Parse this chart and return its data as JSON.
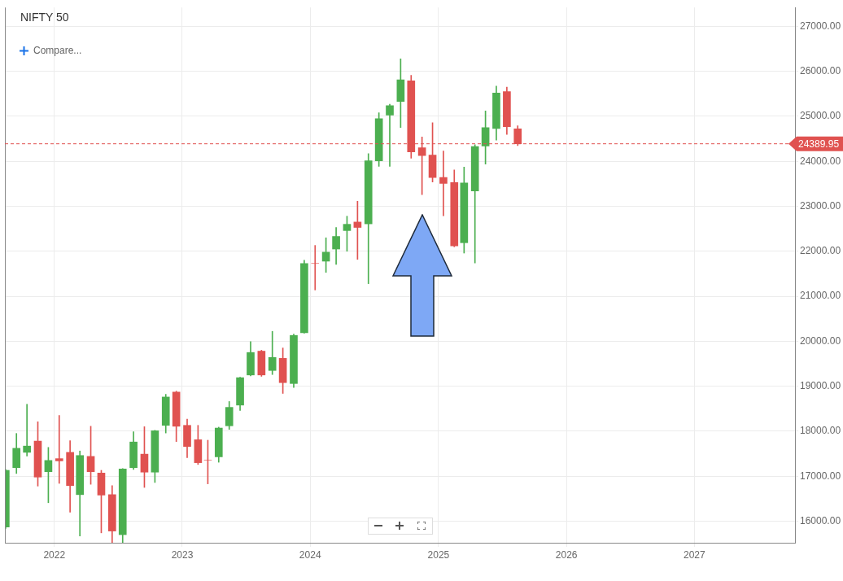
{
  "chart_data": {
    "type": "candlestick",
    "title": "NIFTY 50",
    "annotations": [
      "Compare..."
    ],
    "x": [
      "2021-08-15",
      "2021-09-15",
      "2021-10-15",
      "2021-11-15",
      "2021-12-15",
      "2022-01-15",
      "2022-02-15",
      "2022-03-15",
      "2022-04-15",
      "2022-05-15",
      "2022-06-15",
      "2022-07-15",
      "2022-08-15",
      "2022-09-15",
      "2022-10-15",
      "2022-11-15",
      "2022-12-15",
      "2023-01-15",
      "2023-02-15",
      "2023-03-15",
      "2023-04-15",
      "2023-05-15",
      "2023-06-15",
      "2023-07-15",
      "2023-08-15",
      "2023-09-15",
      "2023-10-15",
      "2023-11-15",
      "2023-12-15",
      "2024-01-15",
      "2024-02-15",
      "2024-03-15",
      "2024-04-15",
      "2024-05-15",
      "2024-06-15",
      "2024-07-15",
      "2024-08-15",
      "2024-09-15",
      "2024-10-15",
      "2024-11-15",
      "2024-12-15",
      "2025-01-15",
      "2025-02-15",
      "2025-03-15",
      "2025-04-15",
      "2025-05-15",
      "2025-06-15",
      "2025-07-15",
      "2025-08-15"
    ],
    "ohlc": [
      [
        15870,
        17150,
        15840,
        17130
      ],
      [
        17190,
        17950,
        17060,
        17620
      ],
      [
        17530,
        18600,
        17450,
        17670
      ],
      [
        17780,
        18210,
        16780,
        16980
      ],
      [
        17100,
        17640,
        16410,
        17350
      ],
      [
        17390,
        18350,
        16840,
        17340
      ],
      [
        17530,
        17790,
        16200,
        16790
      ],
      [
        16590,
        17560,
        15670,
        17460
      ],
      [
        17440,
        18110,
        16820,
        17100
      ],
      [
        17070,
        17130,
        15740,
        16580
      ],
      [
        16590,
        16790,
        15520,
        15780
      ],
      [
        15700,
        17170,
        15510,
        17160
      ],
      [
        17190,
        17990,
        17150,
        17760
      ],
      [
        17490,
        18100,
        16750,
        17090
      ],
      [
        17090,
        18020,
        16860,
        18010
      ],
      [
        18130,
        18820,
        17960,
        18760
      ],
      [
        18870,
        18890,
        17770,
        18110
      ],
      [
        18130,
        18270,
        17410,
        17660
      ],
      [
        17810,
        18130,
        17260,
        17300
      ],
      [
        17360,
        17800,
        16830,
        17360
      ],
      [
        17430,
        18090,
        17310,
        18070
      ],
      [
        18120,
        18660,
        18040,
        18530
      ],
      [
        18580,
        19200,
        18460,
        19190
      ],
      [
        19250,
        19990,
        19230,
        19750
      ],
      [
        19780,
        19800,
        19220,
        19250
      ],
      [
        19350,
        20220,
        19260,
        19640
      ],
      [
        19620,
        19850,
        18840,
        19080
      ],
      [
        19060,
        20160,
        18970,
        20130
      ],
      [
        20190,
        21800,
        20180,
        21730
      ],
      [
        21730,
        22130,
        21140,
        21730
      ],
      [
        21780,
        22300,
        21530,
        21980
      ],
      [
        22050,
        22530,
        21710,
        22330
      ],
      [
        22460,
        22780,
        22000,
        22600
      ],
      [
        22650,
        23110,
        21820,
        22530
      ],
      [
        22610,
        24170,
        21280,
        24010
      ],
      [
        24010,
        25080,
        23890,
        24950
      ],
      [
        25030,
        25270,
        23890,
        25240
      ],
      [
        25330,
        26280,
        24750,
        25810
      ],
      [
        25790,
        25910,
        24070,
        24210
      ],
      [
        24300,
        24540,
        23260,
        24130
      ],
      [
        24140,
        24860,
        23540,
        23640
      ],
      [
        23640,
        24230,
        22790,
        23510
      ],
      [
        23530,
        23810,
        22100,
        22120
      ],
      [
        22190,
        23870,
        21960,
        23520
      ],
      [
        23340,
        24370,
        21740,
        24330
      ],
      [
        24340,
        25120,
        23940,
        24750
      ],
      [
        24730,
        25670,
        24470,
        25520
      ],
      [
        25550,
        25650,
        24600,
        24770
      ],
      [
        24720,
        24790,
        24350,
        24389.95
      ]
    ],
    "colors": [
      "#4caf50",
      "#4caf50",
      "#4caf50",
      "#e05250",
      "#4caf50",
      "#e05250",
      "#e05250",
      "#4caf50",
      "#e05250",
      "#e05250",
      "#e05250",
      "#4caf50",
      "#4caf50",
      "#e05250",
      "#4caf50",
      "#4caf50",
      "#e05250",
      "#e05250",
      "#e05250",
      "#e05250",
      "#4caf50",
      "#4caf50",
      "#4caf50",
      "#4caf50",
      "#e05250",
      "#4caf50",
      "#e05250",
      "#4caf50",
      "#4caf50",
      "#e05250",
      "#4caf50",
      "#4caf50",
      "#4caf50",
      "#e05250",
      "#4caf50",
      "#4caf50",
      "#4caf50",
      "#4caf50",
      "#e05250",
      "#e05250",
      "#e05250",
      "#e05250",
      "#e05250",
      "#4caf50",
      "#4caf50",
      "#4caf50",
      "#4caf50",
      "#e05250",
      "#e05250"
    ],
    "xlim": [
      "2021-08-13",
      "2027-10-15"
    ],
    "xticks": [
      {
        "value": "2022-01-01",
        "label": "2022"
      },
      {
        "value": "2023-01-01",
        "label": "2023"
      },
      {
        "value": "2024-01-01",
        "label": "2024"
      },
      {
        "value": "2025-01-01",
        "label": "2025"
      },
      {
        "value": "2026-01-01",
        "label": "2026"
      },
      {
        "value": "2027-01-01",
        "label": "2027"
      }
    ],
    "ylim": [
      15520,
      27420
    ],
    "yticks": [
      {
        "value": 16000,
        "label": "16000.00"
      },
      {
        "value": 17000,
        "label": "17000.00"
      },
      {
        "value": 18000,
        "label": "18000.00"
      },
      {
        "value": 19000,
        "label": "19000.00"
      },
      {
        "value": 20000,
        "label": "20000.00"
      },
      {
        "value": 21000,
        "label": "21000.00"
      },
      {
        "value": 22000,
        "label": "22000.00"
      },
      {
        "value": 23000,
        "label": "23000.00"
      },
      {
        "value": 24000,
        "label": "24000.00"
      },
      {
        "value": 25000,
        "label": "25000.00"
      },
      {
        "value": 26000,
        "label": "26000.00"
      },
      {
        "value": 27000,
        "label": "27000.00"
      }
    ],
    "grid": true,
    "ref_lines": [
      {
        "axis": "y",
        "value": 24389.95,
        "label": "24389.95",
        "color": "#e05250",
        "line_style": "dashed"
      }
    ]
  }
}
